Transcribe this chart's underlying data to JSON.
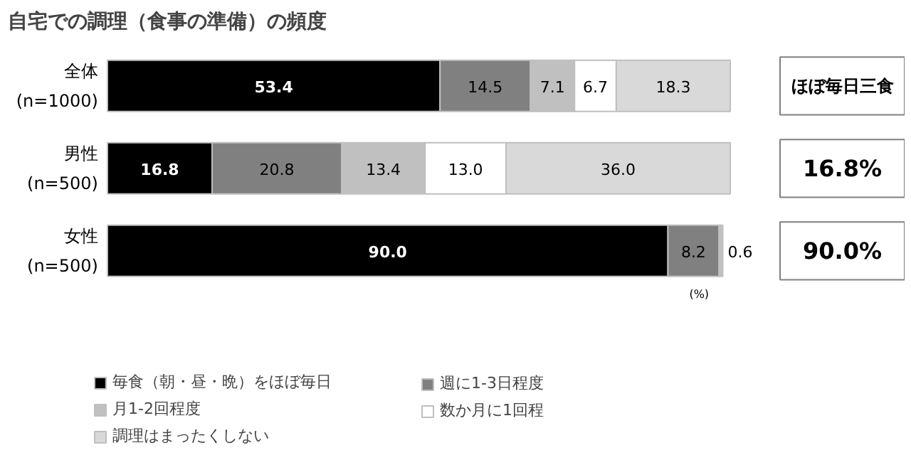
{
  "chart_data": {
    "type": "bar",
    "orientation": "horizontal",
    "stacked": true,
    "legend": "bottom",
    "grid": false,
    "title": "自宅での調理（食事の準備）の頻度",
    "categories": [
      "全体\n(n=1000)",
      "男性\n(n=500)",
      "女性\n(n=500)"
    ],
    "series": [
      {
        "name": "毎食（朝・昼・晩）をほぼ毎日",
        "color": "#000000",
        "values": [
          53.4,
          16.8,
          90.0
        ],
        "value_labels": [
          "53.4",
          "16.8",
          "90.0"
        ]
      },
      {
        "name": "週に1-3日程度",
        "color": "#808080",
        "values": [
          14.5,
          20.8,
          8.2
        ],
        "value_labels": [
          "14.5",
          "20.8",
          "8.2"
        ]
      },
      {
        "name": "月1-2回程度",
        "color": "#c0c0c0",
        "values": [
          7.1,
          13.4,
          0.6
        ],
        "value_labels": [
          "7.1",
          "13.4",
          "0.6"
        ]
      },
      {
        "name": "数か月に1回程",
        "color": "#ffffff",
        "values": [
          6.7,
          13.0,
          null
        ],
        "value_labels": [
          "6.7",
          "13.0",
          null
        ]
      },
      {
        "name": "調理はまったくしない",
        "color": "#d9d9d9",
        "values": [
          18.3,
          36.0,
          null
        ],
        "value_labels": [
          "18.3",
          "36.0",
          null
        ]
      }
    ],
    "annotations": [
      "ほぼ毎日三食",
      "16.8%",
      "90.0%",
      "(%)"
    ]
  }
}
